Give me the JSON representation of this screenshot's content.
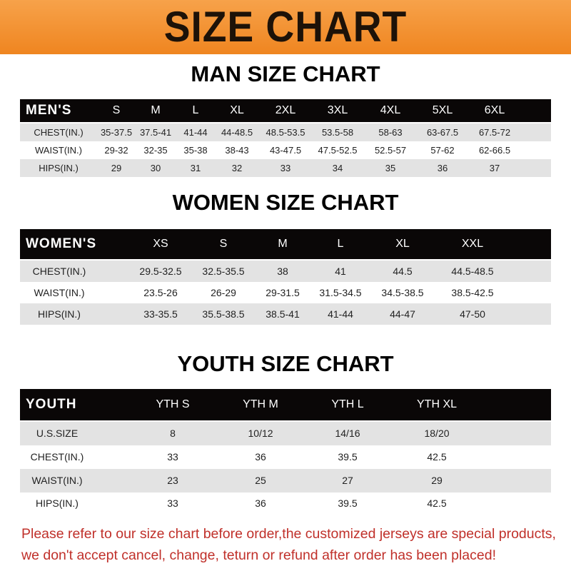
{
  "banner": {
    "title": "SIZE CHART",
    "color": "#ef8520"
  },
  "men": {
    "title": "MAN SIZE CHART",
    "header": [
      "MEN'S",
      "S",
      "M",
      "L",
      "XL",
      "2XL",
      "3XL",
      "4XL",
      "5XL",
      "6XL"
    ],
    "rows": [
      [
        "CHEST(IN.)",
        "35-37.5",
        "37.5-41",
        "41-44",
        "44-48.5",
        "48.5-53.5",
        "53.5-58",
        "58-63",
        "63-67.5",
        "67.5-72"
      ],
      [
        "WAIST(IN.)",
        "29-32",
        "32-35",
        "35-38",
        "38-43",
        "43-47.5",
        "47.5-52.5",
        "52.5-57",
        "57-62",
        "62-66.5"
      ],
      [
        "HIPS(IN.)",
        "29",
        "30",
        "31",
        "32",
        "33",
        "34",
        "35",
        "36",
        "37"
      ]
    ]
  },
  "women": {
    "title": "WOMEN SIZE CHART",
    "header": [
      "WOMEN'S",
      "XS",
      "S",
      "M",
      "L",
      "XL",
      "XXL"
    ],
    "rows": [
      [
        "CHEST(IN.)",
        "29.5-32.5",
        "32.5-35.5",
        "38",
        "41",
        "44.5",
        "44.5-48.5"
      ],
      [
        "WAIST(IN.)",
        "23.5-26",
        "26-29",
        "29-31.5",
        "31.5-34.5",
        "34.5-38.5",
        "38.5-42.5"
      ],
      [
        "HIPS(IN.)",
        "33-35.5",
        "35.5-38.5",
        "38.5-41",
        "41-44",
        "44-47",
        "47-50"
      ]
    ]
  },
  "youth": {
    "title": "YOUTH SIZE CHART",
    "header": [
      "YOUTH",
      "YTH S",
      "YTH M",
      "YTH L",
      "YTH XL"
    ],
    "rows": [
      [
        "U.S.SIZE",
        "8",
        "10/12",
        "14/16",
        "18/20"
      ],
      [
        "CHEST(IN.)",
        "33",
        "36",
        "39.5",
        "42.5"
      ],
      [
        "WAIST(IN.)",
        "23",
        "25",
        "27",
        "29"
      ],
      [
        "HIPS(IN.)",
        "33",
        "36",
        "39.5",
        "42.5"
      ]
    ]
  },
  "note": {
    "line1": "Please refer to our size chart before order,the customized jerseys are special products,",
    "line2": "we don't accept cancel, change, teturn or refund after order has been placed!",
    "color": "#c0302a"
  }
}
